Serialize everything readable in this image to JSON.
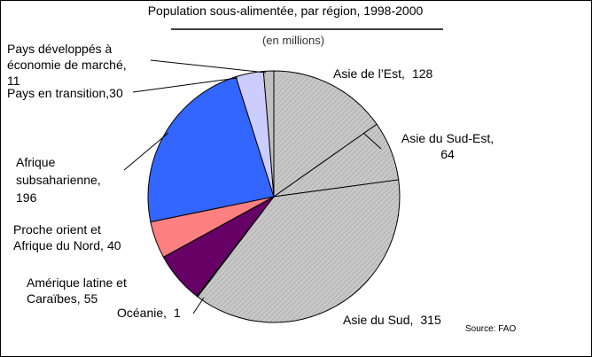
{
  "chart_data": {
    "type": "pie",
    "title": "Population sous-alimentée, par région, 1998-2000",
    "subtitle": "(en millions)",
    "source": "Source: FAO",
    "categories": [
      "Asie de l’Est,",
      "Asie du Sud-Est,\n64",
      "Asie du Sud,",
      "Océanie,",
      "Amérique latine et\nCaraïbes,",
      "Proche orient et\nAfrique du Nord,",
      "Afrique\nsubsaharienne,",
      "Pays en transition,",
      "Pays développés à\néconomie de marché,"
    ],
    "values": [
      128,
      64,
      315,
      1,
      55,
      40,
      196,
      30,
      11
    ],
    "colors": [
      "#c0c0c0",
      "#c0c0c0",
      "#c0c0c0",
      "#ffffff",
      "#660066",
      "#ff8080",
      "#3366ff",
      "#ccccff",
      "#c0c0c0"
    ]
  }
}
